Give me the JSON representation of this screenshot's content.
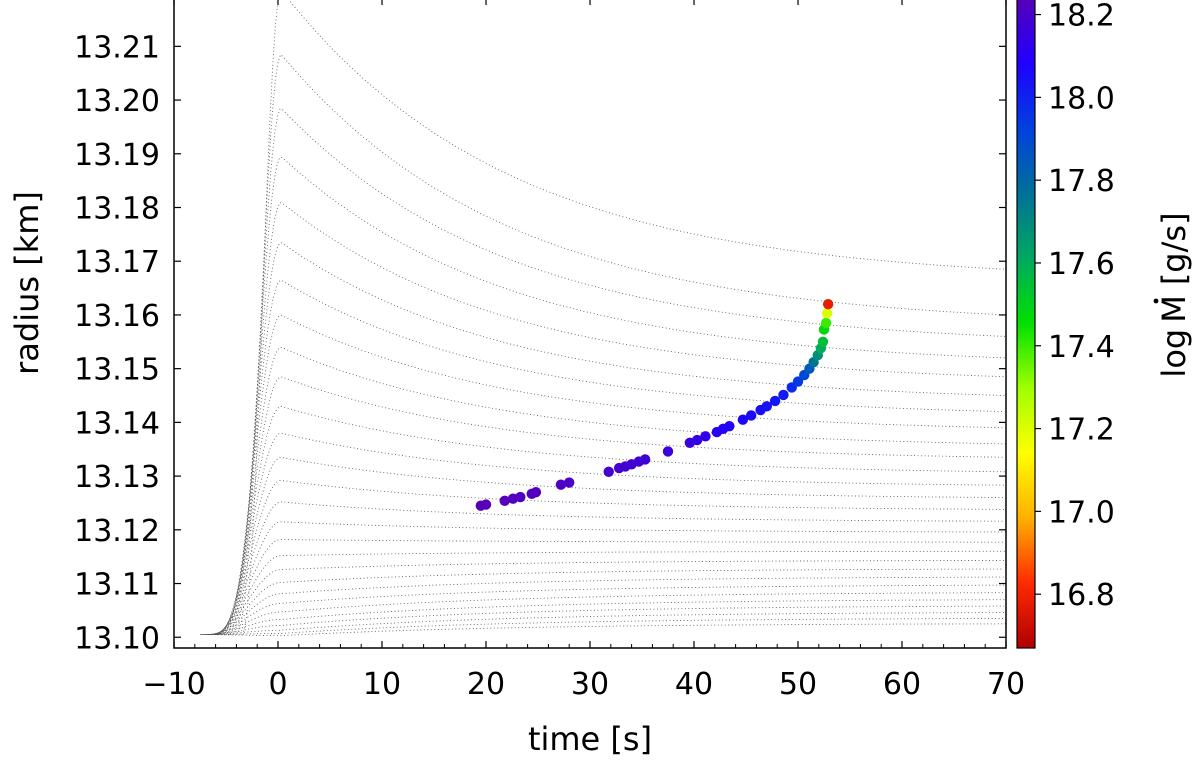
{
  "chart_data": {
    "type": "scatter",
    "title": "",
    "xlabel": "time [s]",
    "ylabel": "radius [km]",
    "xlim": [
      -10,
      70
    ],
    "ylim": [
      13.098,
      13.219
    ],
    "x_ticks": [
      -10,
      0,
      10,
      20,
      30,
      40,
      50,
      60,
      70
    ],
    "x_tick_labels": [
      "−10",
      "0",
      "10",
      "20",
      "30",
      "40",
      "50",
      "60",
      "70"
    ],
    "y_ticks": [
      13.1,
      13.11,
      13.12,
      13.13,
      13.14,
      13.15,
      13.16,
      13.17,
      13.18,
      13.19,
      13.2,
      13.21
    ],
    "y_tick_labels": [
      "13.10",
      "13.11",
      "13.12",
      "13.13",
      "13.14",
      "13.15",
      "13.16",
      "13.17",
      "13.18",
      "13.19",
      "13.20",
      "13.21"
    ],
    "grid": false,
    "colorbar": {
      "label": "log Ṁ [g/s]",
      "label_prefix": "log",
      "label_symbol": "M",
      "label_unit": "[g/s]",
      "range": [
        16.67,
        18.24
      ],
      "ticks": [
        16.8,
        17.0,
        17.2,
        17.4,
        17.6,
        17.8,
        18.0,
        18.2
      ],
      "tick_labels": [
        "16.8",
        "17.0",
        "17.2",
        "17.4",
        "17.6",
        "17.8",
        "18.0",
        "18.2"
      ],
      "colormap": [
        "#b00000",
        "#ff2a00",
        "#ffb000",
        "#ffff00",
        "#a0ff00",
        "#00e000",
        "#00a860",
        "#007098",
        "#0040e0",
        "#2000ff",
        "#5800b8"
      ]
    },
    "background_tracks": {
      "description_free": true,
      "color": "#555555",
      "tracks": [
        {
          "t0": -3.5,
          "peak": 13.2205,
          "end": 13.1685
        },
        {
          "t0": -4.0,
          "peak": 13.2085,
          "end": 13.16
        },
        {
          "t0": -4.3,
          "peak": 13.1985,
          "end": 13.156
        },
        {
          "t0": -4.6,
          "peak": 13.1895,
          "end": 13.152
        },
        {
          "t0": -4.8,
          "peak": 13.181,
          "end": 13.1485
        },
        {
          "t0": -5.0,
          "peak": 13.1735,
          "end": 13.145
        },
        {
          "t0": -5.2,
          "peak": 13.1665,
          "end": 13.142
        },
        {
          "t0": -5.4,
          "peak": 13.16,
          "end": 13.139
        },
        {
          "t0": -5.5,
          "peak": 13.154,
          "end": 13.136
        },
        {
          "t0": -5.6,
          "peak": 13.1485,
          "end": 13.1335
        },
        {
          "t0": -5.8,
          "peak": 13.143,
          "end": 13.1308
        },
        {
          "t0": -5.9,
          "peak": 13.138,
          "end": 13.1283
        },
        {
          "t0": -6.0,
          "peak": 13.1335,
          "end": 13.126
        },
        {
          "t0": -6.1,
          "peak": 13.1292,
          "end": 13.1238
        },
        {
          "t0": -6.2,
          "peak": 13.1252,
          "end": 13.1216
        },
        {
          "t0": -6.3,
          "peak": 13.1215,
          "end": 13.1196
        },
        {
          "t0": -6.4,
          "peak": 13.1182,
          "end": 13.1177
        },
        {
          "t0": -6.5,
          "peak": 13.1152,
          "end": 13.116
        },
        {
          "t0": -6.6,
          "peak": 13.1126,
          "end": 13.1143
        },
        {
          "t0": -6.7,
          "peak": 13.1102,
          "end": 13.1127
        },
        {
          "t0": -6.8,
          "peak": 13.1081,
          "end": 13.1112
        },
        {
          "t0": -6.9,
          "peak": 13.1063,
          "end": 13.1097
        },
        {
          "t0": -7.0,
          "peak": 13.1047,
          "end": 13.1083
        },
        {
          "t0": -7.1,
          "peak": 13.1033,
          "end": 13.107
        },
        {
          "t0": -7.2,
          "peak": 13.1022,
          "end": 13.1058
        },
        {
          "t0": -7.3,
          "peak": 13.1013,
          "end": 13.1046
        },
        {
          "t0": -7.4,
          "peak": 13.1007,
          "end": 13.1035
        },
        {
          "t0": -7.5,
          "peak": 13.1003,
          "end": 13.1025
        }
      ]
    },
    "series": [
      {
        "points": [
          {
            "x": 19.5,
            "y": 13.1245,
            "c": 18.24
          },
          {
            "x": 20.0,
            "y": 13.1247,
            "c": 18.24
          },
          {
            "x": 21.8,
            "y": 13.1254,
            "c": 18.23
          },
          {
            "x": 22.6,
            "y": 13.1258,
            "c": 18.23
          },
          {
            "x": 23.3,
            "y": 13.1261,
            "c": 18.22
          },
          {
            "x": 24.4,
            "y": 13.1267,
            "c": 18.22
          },
          {
            "x": 24.8,
            "y": 13.127,
            "c": 18.22
          },
          {
            "x": 27.2,
            "y": 13.1284,
            "c": 18.21
          },
          {
            "x": 28.0,
            "y": 13.1288,
            "c": 18.21
          },
          {
            "x": 31.8,
            "y": 13.1308,
            "c": 18.19
          },
          {
            "x": 32.8,
            "y": 13.1315,
            "c": 18.19
          },
          {
            "x": 33.4,
            "y": 13.1318,
            "c": 18.18
          },
          {
            "x": 34.0,
            "y": 13.1322,
            "c": 18.18
          },
          {
            "x": 34.7,
            "y": 13.1327,
            "c": 18.18
          },
          {
            "x": 35.3,
            "y": 13.1331,
            "c": 18.17
          },
          {
            "x": 37.5,
            "y": 13.1346,
            "c": 18.16
          },
          {
            "x": 39.6,
            "y": 13.1362,
            "c": 18.15
          },
          {
            "x": 40.3,
            "y": 13.1367,
            "c": 18.14
          },
          {
            "x": 41.1,
            "y": 13.1374,
            "c": 18.13
          },
          {
            "x": 42.2,
            "y": 13.1382,
            "c": 18.11
          },
          {
            "x": 42.8,
            "y": 13.1388,
            "c": 18.1
          },
          {
            "x": 43.4,
            "y": 13.1393,
            "c": 18.09
          },
          {
            "x": 44.7,
            "y": 13.1405,
            "c": 18.07
          },
          {
            "x": 45.5,
            "y": 13.1413,
            "c": 18.06
          },
          {
            "x": 46.4,
            "y": 13.1423,
            "c": 18.05
          },
          {
            "x": 47.0,
            "y": 13.143,
            "c": 18.04
          },
          {
            "x": 47.8,
            "y": 13.144,
            "c": 18.03
          },
          {
            "x": 48.6,
            "y": 13.1451,
            "c": 18.02
          },
          {
            "x": 49.4,
            "y": 13.1465,
            "c": 17.98
          },
          {
            "x": 50.0,
            "y": 13.1476,
            "c": 17.94
          },
          {
            "x": 50.6,
            "y": 13.1488,
            "c": 17.9
          },
          {
            "x": 51.1,
            "y": 13.15,
            "c": 17.84
          },
          {
            "x": 51.5,
            "y": 13.1512,
            "c": 17.76
          },
          {
            "x": 51.9,
            "y": 13.1525,
            "c": 17.68
          },
          {
            "x": 52.2,
            "y": 13.1538,
            "c": 17.6
          },
          {
            "x": 52.4,
            "y": 13.155,
            "c": 17.55
          },
          {
            "x": 52.5,
            "y": 13.1573,
            "c": 17.48
          },
          {
            "x": 52.7,
            "y": 13.1585,
            "c": 17.4
          },
          {
            "x": 52.8,
            "y": 13.1603,
            "c": 17.2
          },
          {
            "x": 52.9,
            "y": 13.162,
            "c": 16.78
          }
        ]
      }
    ]
  }
}
